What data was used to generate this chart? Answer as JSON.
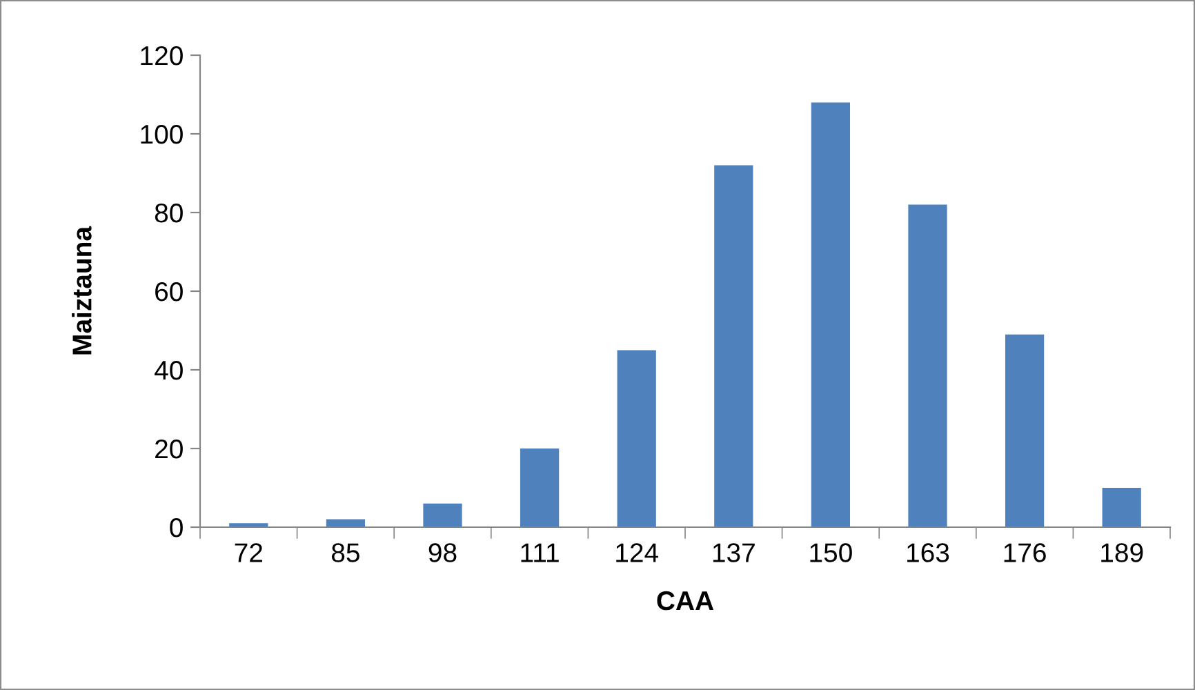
{
  "chart_data": {
    "type": "bar",
    "xlabel": "CAA",
    "ylabel": "Maiztauna",
    "categories": [
      "72",
      "85",
      "98",
      "111",
      "124",
      "137",
      "150",
      "163",
      "176",
      "189"
    ],
    "values": [
      1,
      2,
      6,
      20,
      45,
      92,
      108,
      82,
      49,
      10
    ],
    "color": "#4f81bd",
    "ylim": [
      0,
      120
    ],
    "yticks": [
      0,
      20,
      40,
      60,
      80,
      100,
      120
    ],
    "grid": false,
    "legend": false
  }
}
